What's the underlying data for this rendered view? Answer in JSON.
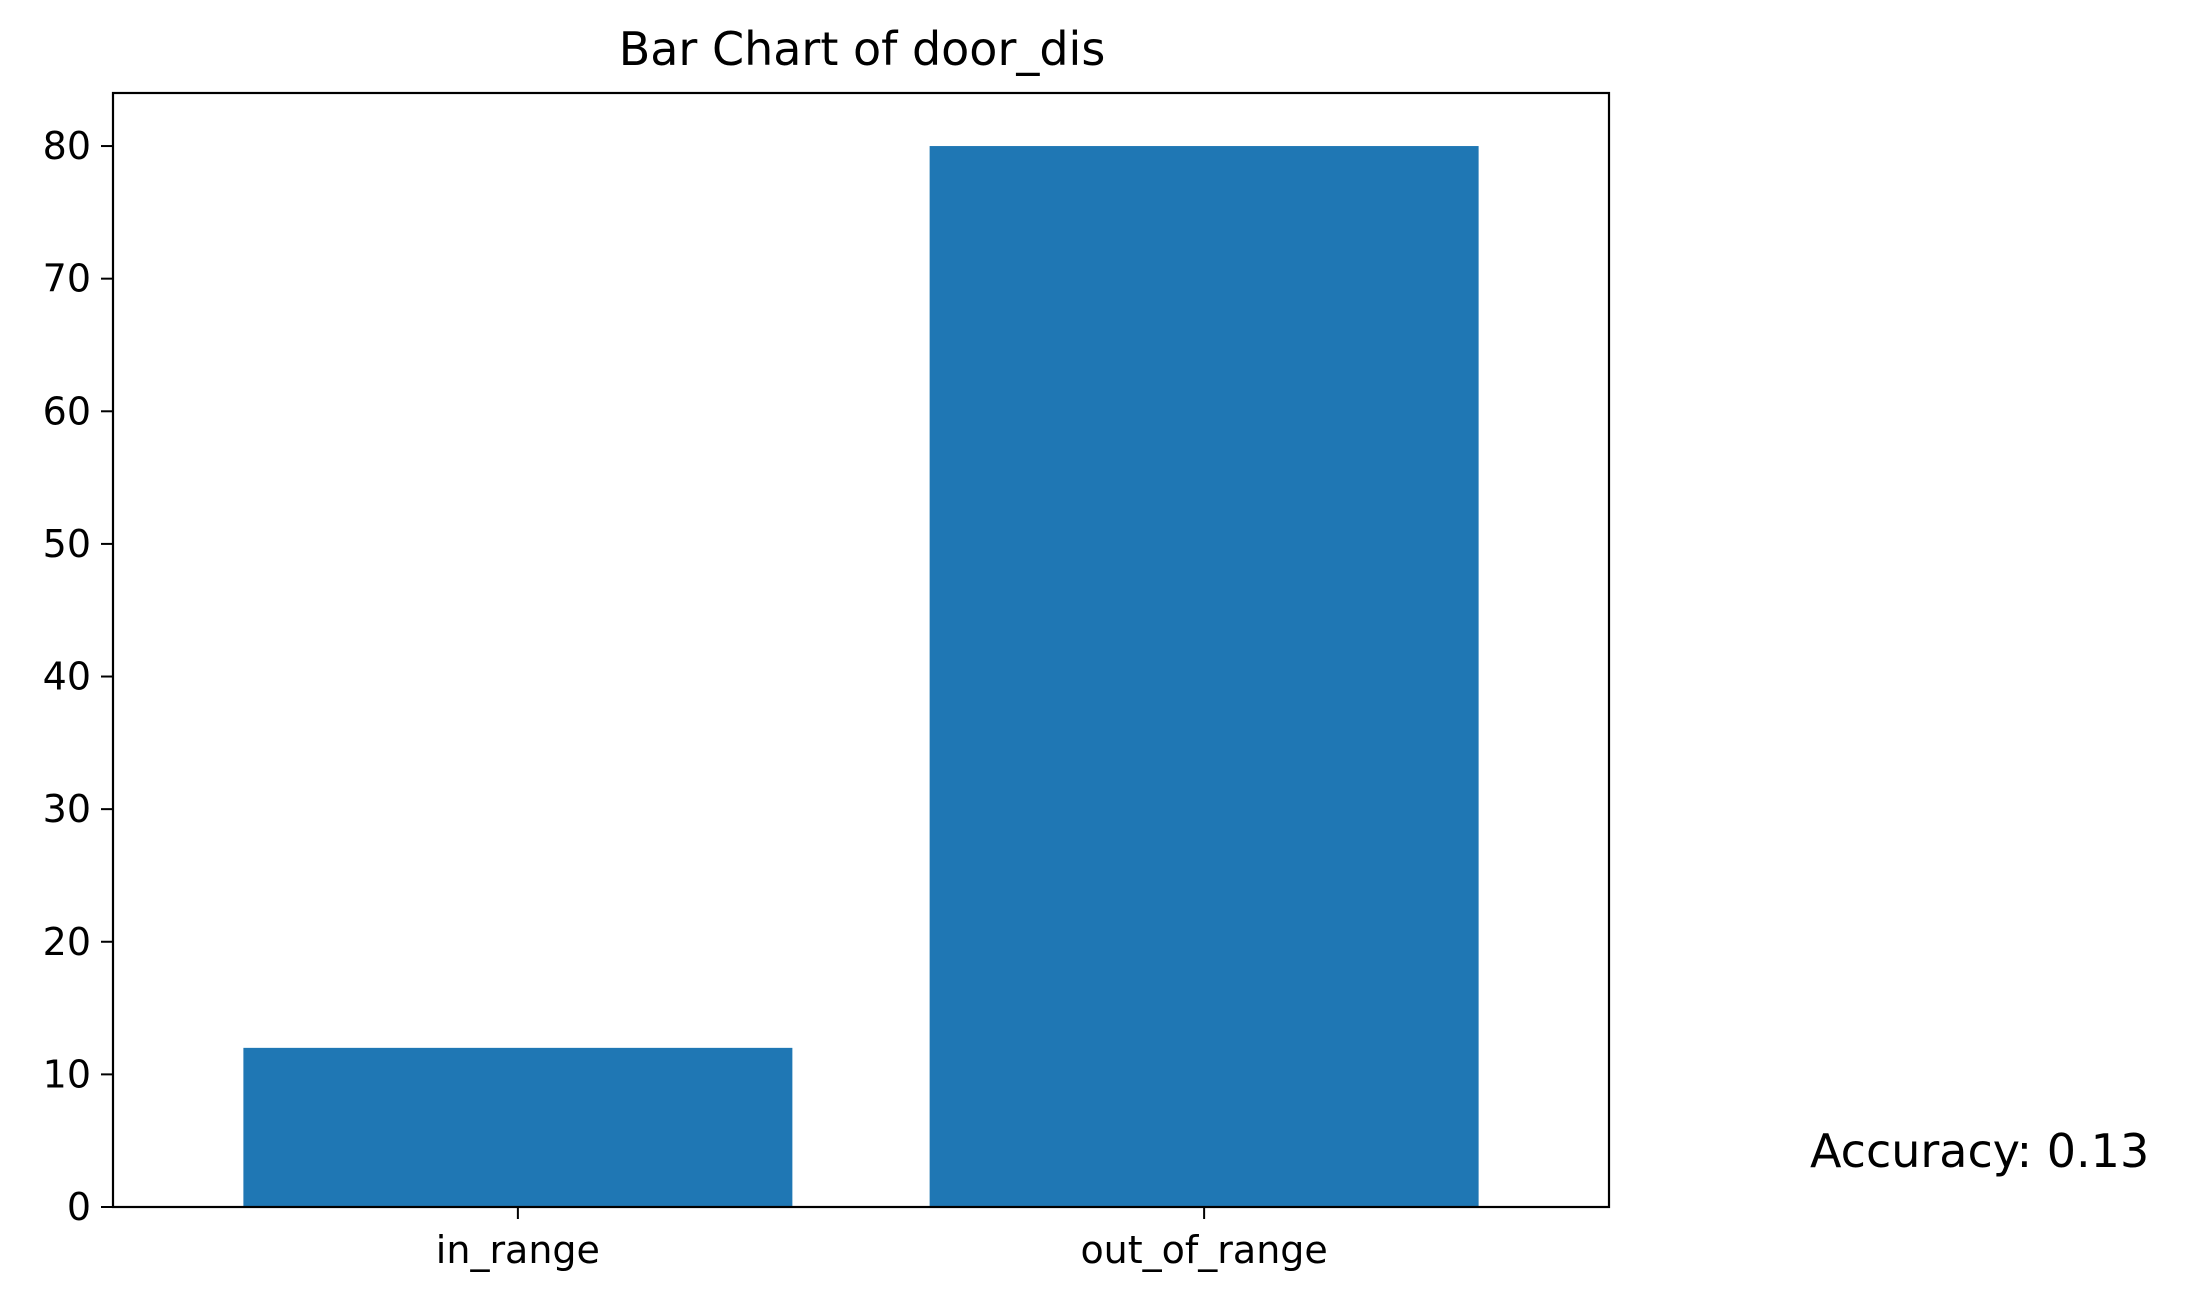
{
  "chart_data": {
    "type": "bar",
    "title": "Bar Chart of door_dis",
    "xlabel": "",
    "ylabel": "",
    "categories": [
      "in_range",
      "out_of_range"
    ],
    "values": [
      12,
      80
    ],
    "ylim": [
      0,
      84
    ],
    "yticks": [
      0,
      10,
      20,
      30,
      40,
      50,
      60,
      70,
      80
    ],
    "bar_color": "#1f77b4",
    "grid": false,
    "legend": "none"
  },
  "annotation": {
    "text": "Accuracy: 0.13"
  }
}
